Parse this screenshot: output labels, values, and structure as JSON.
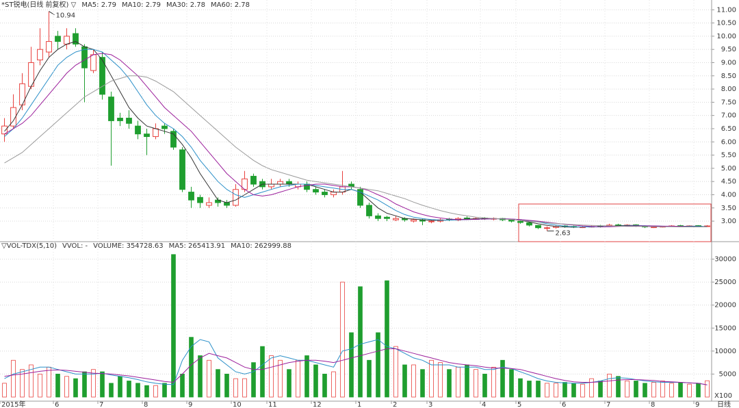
{
  "chart_data": [
    {
      "type": "candlestick",
      "title": "*ST锐电(日线 前复权) ▽",
      "categories": [
        "2015年",
        null,
        null,
        null,
        null,
        null,
        "6",
        null,
        null,
        null,
        null,
        "7",
        null,
        null,
        null,
        null,
        "8",
        null,
        null,
        null,
        null,
        "9",
        null,
        null,
        null,
        null,
        "10",
        null,
        null,
        null,
        "11",
        null,
        null,
        null,
        null,
        "12",
        null,
        null,
        null,
        null,
        "1",
        null,
        null,
        null,
        "2",
        null,
        null,
        null,
        "3",
        null,
        null,
        null,
        null,
        null,
        "4",
        null,
        null,
        null,
        "5",
        null,
        null,
        null,
        null,
        "6",
        null,
        null,
        null,
        null,
        "7",
        null,
        null,
        null,
        null,
        "8",
        null,
        null,
        null,
        null,
        "9",
        null
      ],
      "open": [
        6.3,
        6.6,
        7.4,
        8.1,
        9.1,
        9.4,
        10.0,
        9.7,
        10.1,
        9.6,
        8.7,
        9.2,
        7.7,
        6.9,
        6.9,
        6.6,
        6.3,
        6.2,
        6.6,
        6.4,
        5.7,
        4.1,
        3.9,
        3.6,
        3.8,
        3.7,
        3.6,
        4.2,
        4.7,
        4.5,
        4.3,
        4.4,
        4.5,
        4.3,
        4.4,
        4.2,
        4.1,
        4.0,
        4.1,
        4.4,
        4.2,
        3.6,
        3.2,
        3.15,
        3.05,
        3.1,
        3.0,
        3.05,
        2.98,
        3.0,
        3.08,
        3.04,
        3.12,
        3.08,
        3.12,
        3.08,
        3.1,
        3.04,
        2.99,
        2.94,
        2.84,
        2.74,
        2.76,
        2.82,
        2.8,
        2.77,
        2.79,
        2.81,
        2.8,
        2.86,
        2.84,
        2.86,
        2.81,
        2.77,
        2.79,
        2.81,
        2.83,
        2.81,
        2.83,
        2.8
      ],
      "high": [
        6.9,
        7.8,
        8.6,
        9.6,
        10.3,
        10.94,
        10.2,
        10.3,
        10.3,
        9.7,
        9.5,
        9.4,
        7.9,
        7.1,
        7.2,
        6.8,
        6.5,
        6.7,
        6.7,
        6.5,
        5.8,
        4.3,
        4.0,
        3.9,
        3.9,
        3.8,
        4.4,
        4.9,
        4.8,
        4.6,
        4.6,
        4.6,
        4.6,
        4.5,
        4.5,
        4.3,
        4.2,
        4.2,
        4.9,
        4.5,
        4.3,
        3.7,
        3.3,
        3.2,
        3.2,
        3.15,
        3.1,
        3.1,
        3.05,
        3.1,
        3.12,
        3.15,
        3.18,
        3.15,
        3.15,
        3.14,
        3.12,
        3.06,
        3.02,
        2.96,
        2.86,
        2.8,
        2.84,
        2.85,
        2.83,
        2.82,
        2.84,
        2.86,
        2.9,
        2.9,
        2.88,
        2.88,
        2.84,
        2.8,
        2.82,
        2.85,
        2.86,
        2.84,
        2.85,
        2.85
      ],
      "low": [
        6.0,
        6.5,
        7.2,
        8.0,
        8.9,
        9.2,
        9.5,
        9.5,
        9.6,
        7.5,
        8.6,
        7.6,
        5.1,
        6.6,
        6.5,
        6.1,
        5.5,
        6.1,
        6.3,
        5.7,
        4.1,
        3.5,
        3.5,
        3.5,
        3.55,
        3.5,
        3.55,
        4.1,
        4.3,
        4.2,
        4.2,
        4.3,
        4.3,
        4.2,
        4.1,
        4.0,
        3.9,
        3.9,
        4.0,
        4.2,
        3.5,
        3.1,
        3.0,
        3.0,
        3.0,
        2.98,
        2.95,
        2.85,
        2.92,
        2.95,
        3.0,
        3.0,
        3.05,
        3.05,
        3.05,
        3.03,
        3.0,
        2.95,
        2.9,
        2.8,
        2.7,
        2.63,
        2.72,
        2.75,
        2.74,
        2.74,
        2.76,
        2.76,
        2.78,
        2.8,
        2.8,
        2.78,
        2.74,
        2.74,
        2.76,
        2.78,
        2.79,
        2.78,
        2.79,
        2.78
      ],
      "close": [
        6.6,
        7.3,
        8.2,
        9.0,
        9.5,
        9.8,
        9.8,
        10.0,
        9.7,
        8.8,
        9.3,
        7.8,
        6.8,
        6.8,
        6.7,
        6.3,
        6.2,
        6.5,
        6.5,
        5.8,
        4.2,
        3.8,
        3.7,
        3.7,
        3.7,
        3.6,
        4.2,
        4.6,
        4.4,
        4.3,
        4.4,
        4.5,
        4.4,
        4.4,
        4.2,
        4.1,
        4.0,
        4.1,
        4.3,
        4.3,
        3.6,
        3.2,
        3.1,
        3.1,
        3.1,
        3.05,
        3.05,
        3.0,
        3.0,
        3.05,
        3.05,
        3.1,
        3.1,
        3.1,
        3.1,
        3.1,
        3.05,
        3.0,
        2.95,
        2.85,
        2.75,
        2.75,
        2.8,
        2.8,
        2.78,
        2.78,
        2.8,
        2.8,
        2.85,
        2.85,
        2.85,
        2.82,
        2.78,
        2.78,
        2.8,
        2.82,
        2.82,
        2.82,
        2.82,
        2.82
      ],
      "up_color": "#e8413e",
      "down_color": "#1f9e2f",
      "series": [
        {
          "name": "MA5: 2.79",
          "color": "#333333",
          "values": [
            6.4,
            6.8,
            7.4,
            8.1,
            8.7,
            9.2,
            9.5,
            9.7,
            9.8,
            9.6,
            9.5,
            9.1,
            8.5,
            7.9,
            7.3,
            6.9,
            6.6,
            6.5,
            6.4,
            6.3,
            5.9,
            5.4,
            4.8,
            4.3,
            3.8,
            3.7,
            3.8,
            4.0,
            4.2,
            4.4,
            4.4,
            4.4,
            4.4,
            4.4,
            4.4,
            4.3,
            4.2,
            4.1,
            4.1,
            4.2,
            4.1,
            3.8,
            3.5,
            3.3,
            3.2,
            3.1,
            3.08,
            3.05,
            3.03,
            3.03,
            3.04,
            3.06,
            3.08,
            3.09,
            3.1,
            3.1,
            3.09,
            3.07,
            3.03,
            2.97,
            2.9,
            2.84,
            2.8,
            2.78,
            2.77,
            2.78,
            2.79,
            2.79,
            2.81,
            2.83,
            2.84,
            2.84,
            2.82,
            2.81,
            2.8,
            2.8,
            2.8,
            2.81,
            2.81,
            2.79
          ]
        },
        {
          "name": "MA10: 2.79",
          "color": "#2a8fc8",
          "values": [
            6.2,
            6.5,
            6.9,
            7.4,
            7.9,
            8.4,
            8.9,
            9.2,
            9.4,
            9.5,
            9.5,
            9.4,
            9.1,
            8.8,
            8.4,
            7.9,
            7.4,
            7.0,
            6.7,
            6.5,
            6.2,
            5.8,
            5.3,
            4.9,
            4.5,
            4.2,
            4.0,
            3.9,
            4.0,
            4.1,
            4.2,
            4.3,
            4.35,
            4.4,
            4.4,
            4.35,
            4.3,
            4.25,
            4.2,
            4.2,
            4.1,
            3.95,
            3.8,
            3.6,
            3.4,
            3.25,
            3.15,
            3.1,
            3.06,
            3.04,
            3.04,
            3.05,
            3.06,
            3.07,
            3.08,
            3.09,
            3.09,
            3.08,
            3.06,
            3.02,
            2.97,
            2.9,
            2.85,
            2.81,
            2.79,
            2.78,
            2.78,
            2.79,
            2.8,
            2.81,
            2.82,
            2.83,
            2.83,
            2.82,
            2.81,
            2.8,
            2.8,
            2.8,
            2.8,
            2.79
          ]
        },
        {
          "name": "MA30: 2.78",
          "color": "#9b1e9b",
          "values": [
            6.3,
            6.5,
            6.7,
            7.0,
            7.4,
            7.8,
            8.2,
            8.6,
            8.9,
            9.1,
            9.3,
            9.35,
            9.3,
            9.1,
            8.8,
            8.5,
            8.1,
            7.7,
            7.3,
            7.0,
            6.7,
            6.4,
            6.0,
            5.6,
            5.2,
            4.8,
            4.5,
            4.2,
            4.0,
            3.95,
            4.0,
            4.1,
            4.2,
            4.3,
            4.35,
            4.4,
            4.4,
            4.35,
            4.3,
            4.3,
            4.25,
            4.15,
            4.0,
            3.85,
            3.65,
            3.5,
            3.35,
            3.25,
            3.17,
            3.12,
            3.08,
            3.06,
            3.06,
            3.07,
            3.08,
            3.09,
            3.09,
            3.08,
            3.06,
            3.03,
            3.0,
            2.96,
            2.92,
            2.88,
            2.85,
            2.82,
            2.8,
            2.79,
            2.79,
            2.8,
            2.81,
            2.82,
            2.82,
            2.82,
            2.81,
            2.81,
            2.8,
            2.79,
            2.78,
            2.78
          ]
        },
        {
          "name": "MA60: 2.78",
          "color": "#9a9a9a",
          "values": [
            5.2,
            5.4,
            5.6,
            5.9,
            6.2,
            6.5,
            6.8,
            7.1,
            7.4,
            7.7,
            7.9,
            8.1,
            8.3,
            8.4,
            8.5,
            8.5,
            8.45,
            8.3,
            8.1,
            7.9,
            7.6,
            7.3,
            7.0,
            6.7,
            6.4,
            6.1,
            5.8,
            5.55,
            5.3,
            5.1,
            4.95,
            4.85,
            4.75,
            4.65,
            4.55,
            4.5,
            4.45,
            4.4,
            4.35,
            4.3,
            4.25,
            4.2,
            4.15,
            4.05,
            3.95,
            3.85,
            3.72,
            3.6,
            3.5,
            3.4,
            3.32,
            3.25,
            3.2,
            3.15,
            3.12,
            3.1,
            3.08,
            3.06,
            3.03,
            3.0,
            2.97,
            2.94,
            2.91,
            2.89,
            2.87,
            2.85,
            2.84,
            2.83,
            2.82,
            2.81,
            2.8,
            2.8,
            2.8,
            2.79,
            2.79,
            2.79,
            2.78,
            2.78,
            2.78,
            2.78
          ]
        }
      ],
      "ylim": [
        2.25,
        11.37
      ],
      "yticks": [
        {
          "value": 3,
          "label": "3.00"
        },
        {
          "value": 3.5,
          "label": "3.50"
        },
        {
          "value": 4,
          "label": "4.00"
        },
        {
          "value": 4.5,
          "label": "4.50"
        },
        {
          "value": 5,
          "label": "5.00"
        },
        {
          "value": 5.5,
          "label": "5.50"
        },
        {
          "value": 6,
          "label": "6.00"
        },
        {
          "value": 6.5,
          "label": "6.50"
        },
        {
          "value": 7,
          "label": "7.00"
        },
        {
          "value": 7.5,
          "label": "7.50"
        },
        {
          "value": 8,
          "label": "8.00"
        },
        {
          "value": 8.5,
          "label": "8.50"
        },
        {
          "value": 9,
          "label": "9.00"
        },
        {
          "value": 9.5,
          "label": "9.50"
        },
        {
          "value": 10,
          "label": "10.00"
        },
        {
          "value": 10.5,
          "label": "10.50"
        },
        {
          "value": 11,
          "label": "11.00"
        }
      ],
      "grid": true
    },
    {
      "type": "bar",
      "title": "▽VOL-TDX(5,10)",
      "subtitle": "VVOL: -",
      "legend_label": "VOLUME: 354728.63",
      "legend_color": "#2a8fc8",
      "values": [
        3000,
        8000,
        6000,
        7000,
        5000,
        6500,
        5000,
        4500,
        4000,
        5500,
        6000,
        5500,
        3000,
        4500,
        3500,
        3000,
        2500,
        2500,
        3000,
        31000,
        5000,
        13000,
        9000,
        8000,
        6000,
        5000,
        4000,
        4000,
        7500,
        11000,
        9000,
        8000,
        6000,
        8000,
        9000,
        7000,
        5000,
        5500,
        25000,
        14000,
        24000,
        8000,
        14000,
        25300,
        11000,
        7000,
        7000,
        6000,
        8000,
        7500,
        6000,
        6500,
        7000,
        6000,
        5000,
        6500,
        8000,
        6000,
        4000,
        3500,
        3500,
        3000,
        3000,
        3200,
        3000,
        2800,
        4000,
        3500,
        5000,
        4500,
        3500,
        3500,
        3000,
        3200,
        3500,
        3000,
        3200,
        2800,
        3000,
        3547
      ],
      "series": [
        {
          "name": "MA5: 265413.91",
          "color": "#2a8fc8",
          "values": [
            4000,
            5000,
            5500,
            6000,
            6500,
            6500,
            6000,
            5500,
            5000,
            5000,
            5000,
            5200,
            4800,
            4500,
            4200,
            3800,
            3300,
            3000,
            2800,
            2700,
            8000,
            11000,
            12500,
            12000,
            8500,
            7000,
            5500,
            5000,
            5500,
            7000,
            8500,
            9000,
            8500,
            8000,
            8000,
            7500,
            7000,
            6500,
            10000,
            10500,
            11500,
            12000,
            12500,
            11000,
            10500,
            9500,
            8500,
            8000,
            7000,
            7000,
            7000,
            6500,
            6500,
            6500,
            6000,
            6000,
            6500,
            6200,
            5500,
            4800,
            4000,
            3500,
            3200,
            3100,
            3000,
            3000,
            3200,
            3500,
            4000,
            4200,
            4100,
            3800,
            3500,
            3300,
            3200,
            3200,
            3200,
            3100,
            3000,
            2654
          ]
        },
        {
          "name": "MA10: 262999.88",
          "color": "#9b1e9b",
          "values": [
            4500,
            4800,
            5000,
            5300,
            5600,
            5800,
            5900,
            5800,
            5600,
            5400,
            5200,
            5100,
            5000,
            4800,
            4600,
            4300,
            4000,
            3700,
            3400,
            3200,
            5000,
            7000,
            8500,
            9500,
            9000,
            8500,
            7500,
            6500,
            6000,
            6000,
            6500,
            7000,
            7500,
            7800,
            8000,
            8000,
            7800,
            7500,
            8000,
            8500,
            9000,
            9500,
            10000,
            10500,
            10500,
            10000,
            9500,
            9000,
            8500,
            8000,
            7500,
            7200,
            7000,
            6800,
            6500,
            6300,
            6300,
            6200,
            6000,
            5500,
            5000,
            4500,
            4000,
            3600,
            3300,
            3200,
            3200,
            3300,
            3500,
            3700,
            3800,
            3800,
            3700,
            3600,
            3400,
            3300,
            3200,
            3100,
            3000,
            2630
          ]
        }
      ],
      "ylim": [
        0,
        33500
      ],
      "yticks": [
        5000,
        10000,
        15000,
        20000,
        25000,
        30000
      ],
      "unit_label": "X100",
      "period_label": "日线",
      "grid": true
    }
  ]
}
